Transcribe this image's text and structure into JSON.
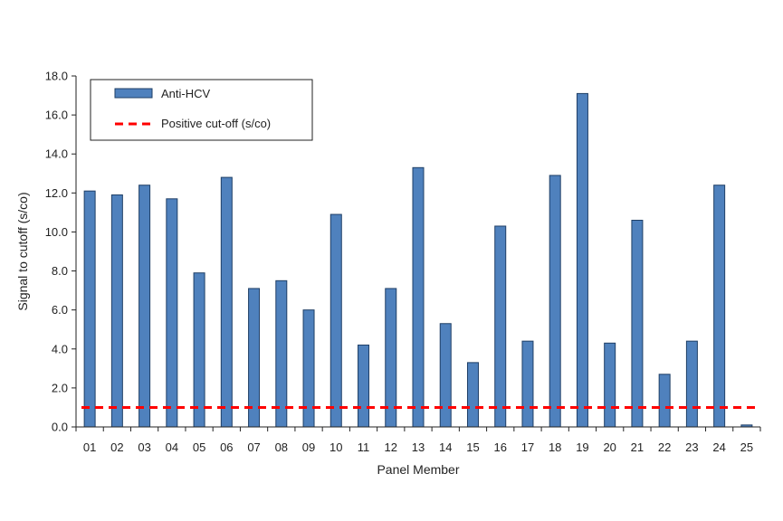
{
  "chart_data": {
    "type": "bar",
    "xlabel": "Panel Member",
    "ylabel": "Signal to cutoff (s/co)",
    "ylim": [
      0,
      18
    ],
    "yticks": [
      "0.0",
      "2.0",
      "4.0",
      "6.0",
      "8.0",
      "10.0",
      "12.0",
      "14.0",
      "16.0",
      "18.0"
    ],
    "categories": [
      "01",
      "02",
      "03",
      "04",
      "05",
      "06",
      "07",
      "08",
      "09",
      "10",
      "11",
      "12",
      "13",
      "14",
      "15",
      "16",
      "17",
      "18",
      "19",
      "20",
      "21",
      "22",
      "23",
      "24",
      "25"
    ],
    "series": [
      {
        "name": "Anti-HCV",
        "color": "#4f81bd",
        "values": [
          12.1,
          11.9,
          12.4,
          11.7,
          7.9,
          12.8,
          7.1,
          7.5,
          6.0,
          10.9,
          4.2,
          7.1,
          13.3,
          5.3,
          3.3,
          10.3,
          4.4,
          12.9,
          17.1,
          4.3,
          10.6,
          2.7,
          4.4,
          12.4,
          0.1
        ]
      }
    ],
    "reference_line": {
      "name": "Positive cut-off (s/co)",
      "value": 1.0,
      "color": "#ff0000",
      "style": "dashed"
    },
    "legend": "top-left",
    "grid": false
  }
}
